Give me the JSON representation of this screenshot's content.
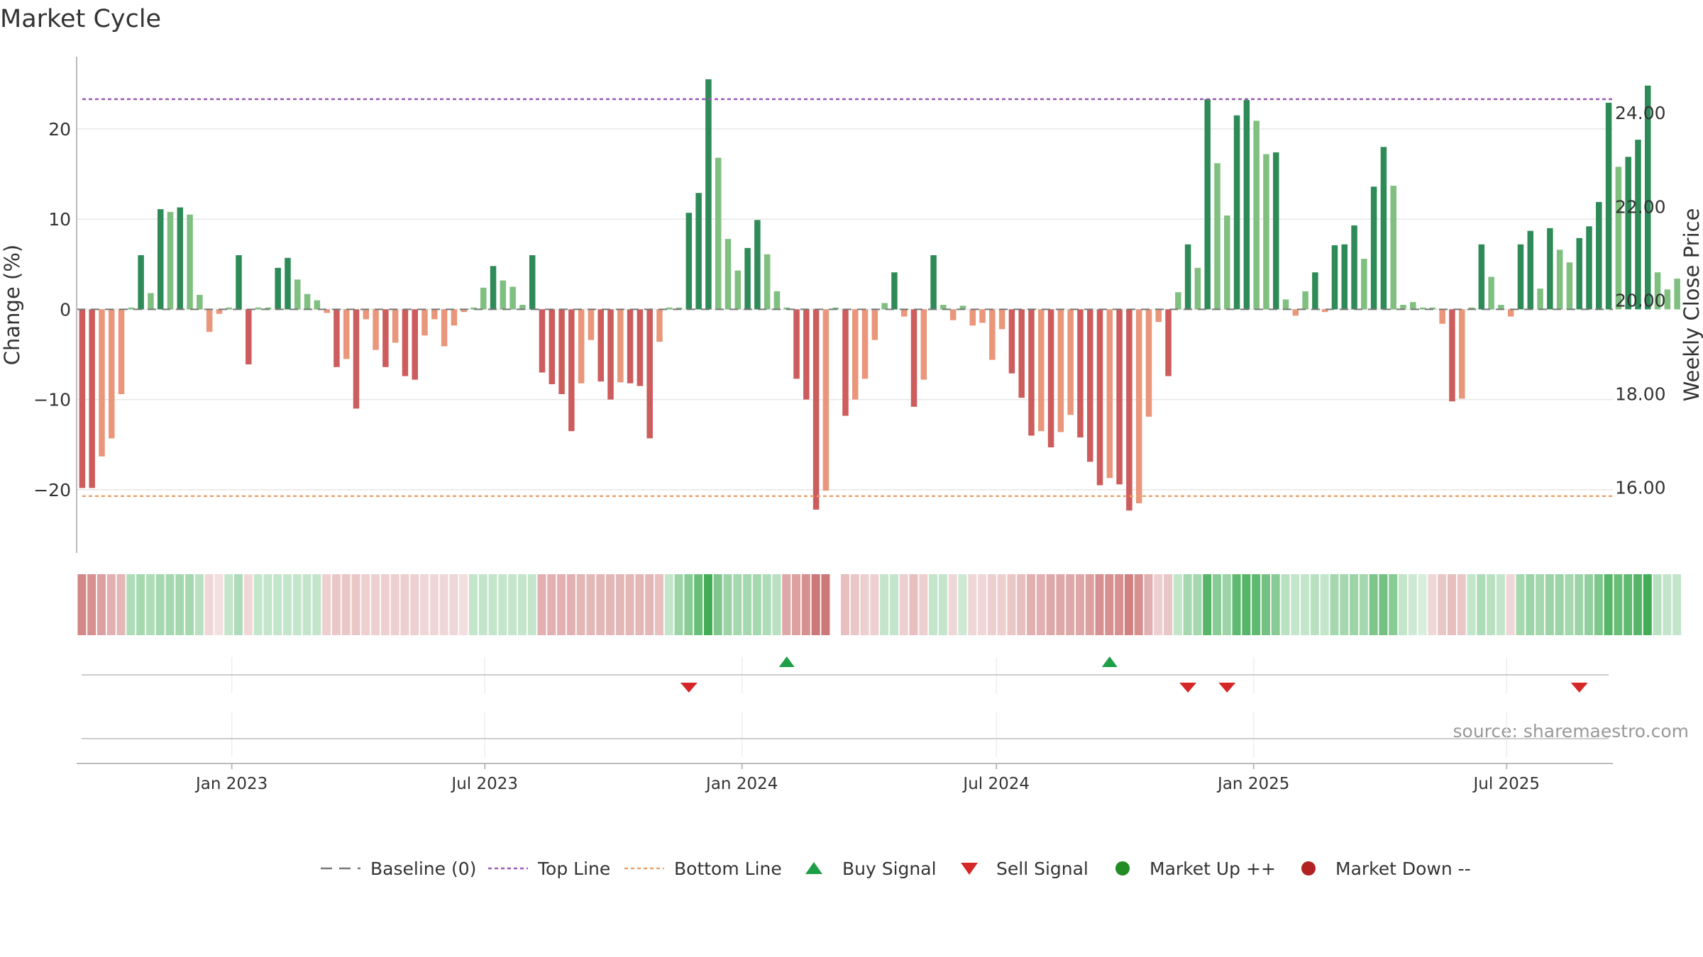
{
  "chart_data": {
    "type": "bar",
    "title": "Market Cycle",
    "source": "source: sharemaestro.com",
    "ylabel_left": "Change (%)",
    "ylabel_right": "Weekly Close Price",
    "ylim_left": [
      -27,
      28
    ],
    "left_ticks": [
      20,
      10,
      0,
      -10,
      -20
    ],
    "left_tick_labels": [
      "20",
      "10",
      "0",
      "−10",
      "−20"
    ],
    "right_ticks": [
      24,
      22,
      20,
      18,
      16
    ],
    "right_tick_labels": [
      "24.00",
      "22.00",
      "20.00",
      "18.00",
      "16.00"
    ],
    "top_line": 23.3,
    "bottom_line": -20.7,
    "x_start": "2022-09-12",
    "x_end": "2025-09-15",
    "x_ticks": [
      {
        "date": "2023-01-01",
        "label": "Jan 2023"
      },
      {
        "date": "2023-07-01",
        "label": "Jul 2023"
      },
      {
        "date": "2024-01-01",
        "label": "Jan 2024"
      },
      {
        "date": "2024-07-01",
        "label": "Jul 2024"
      },
      {
        "date": "2025-01-01",
        "label": "Jan 2025"
      },
      {
        "date": "2025-07-01",
        "label": "Jul 2025"
      }
    ],
    "week_start": "2022-09-16",
    "weekly_change": [
      -19.8,
      -19.8,
      -16.3,
      -14.3,
      -9.4,
      0.2,
      6.0,
      1.8,
      11.1,
      10.8,
      11.3,
      10.5,
      1.6,
      -2.5,
      -0.5,
      0.2,
      6.0,
      -6.1,
      0.2,
      0.2,
      4.6,
      5.7,
      3.3,
      1.7,
      1.0,
      -0.4,
      -6.4,
      -5.5,
      -11.0,
      -1.1,
      -4.5,
      -6.4,
      -3.7,
      -7.4,
      -7.8,
      -2.9,
      -1.1,
      -4.1,
      -1.8,
      -0.3,
      0.2,
      2.4,
      4.8,
      3.2,
      2.5,
      0.5,
      6.0,
      -7.0,
      -8.3,
      -9.4,
      -13.5,
      -8.2,
      -3.4,
      -8.0,
      -10.0,
      -8.1,
      -8.2,
      -8.5,
      -14.3,
      -3.6,
      0.2,
      0.2,
      10.7,
      12.9,
      25.5,
      16.8,
      7.8,
      4.3,
      6.8,
      9.9,
      6.1,
      2.0,
      0.2,
      -7.7,
      -10.0,
      -22.2,
      -20.1,
      0.2,
      -11.8,
      -10.0,
      -7.7,
      -3.4,
      0.7,
      4.1,
      -0.8,
      -10.8,
      -7.8,
      6.0,
      0.5,
      -1.2,
      0.4,
      -1.8,
      -1.5,
      -5.6,
      -2.2,
      -7.1,
      -9.8,
      -14.0,
      -13.5,
      -15.3,
      -13.6,
      -11.7,
      -14.2,
      -16.9,
      -19.5,
      -18.7,
      -19.4,
      -22.3,
      -21.5,
      -11.9,
      -1.4,
      -7.4,
      1.9,
      7.2,
      4.6,
      23.3,
      16.2,
      10.4,
      21.5,
      23.2,
      20.9,
      17.2,
      17.4,
      1.1,
      -0.7,
      2.0,
      4.1,
      -0.3,
      7.1,
      7.2,
      9.3,
      5.6,
      13.6,
      18.0,
      13.7,
      0.5,
      0.8,
      0.2,
      0.2,
      -1.6,
      -10.2,
      -9.9,
      0.2,
      7.2,
      3.6,
      0.5,
      -0.8,
      7.2,
      8.7,
      2.3,
      9.0,
      6.6,
      5.2,
      7.9,
      9.2,
      11.9,
      22.9,
      15.8,
      16.9,
      18.8,
      24.8,
      4.1,
      2.2,
      3.4
    ],
    "band_intensity": [
      -0.75,
      -0.7,
      -0.6,
      -0.5,
      -0.45,
      0.4,
      0.45,
      0.4,
      0.45,
      0.45,
      0.45,
      0.45,
      0.35,
      -0.25,
      -0.2,
      0.3,
      0.4,
      -0.25,
      0.3,
      0.3,
      0.3,
      0.3,
      0.3,
      0.3,
      0.3,
      -0.3,
      -0.35,
      -0.35,
      -0.35,
      -0.3,
      -0.3,
      -0.3,
      -0.3,
      -0.3,
      -0.3,
      -0.25,
      -0.25,
      -0.25,
      -0.25,
      -0.2,
      0.3,
      0.3,
      0.3,
      0.3,
      0.3,
      0.3,
      0.3,
      -0.5,
      -0.5,
      -0.5,
      -0.5,
      -0.45,
      -0.45,
      -0.45,
      -0.45,
      -0.45,
      -0.45,
      -0.45,
      -0.45,
      -0.4,
      0.3,
      0.5,
      0.6,
      0.75,
      0.95,
      0.65,
      0.5,
      0.45,
      0.45,
      0.45,
      0.4,
      0.35,
      -0.55,
      -0.6,
      -0.7,
      -0.85,
      -0.85,
      null,
      -0.4,
      -0.35,
      -0.3,
      -0.3,
      0.3,
      0.3,
      -0.3,
      -0.4,
      -0.3,
      0.3,
      0.3,
      -0.25,
      0.25,
      -0.25,
      -0.25,
      -0.3,
      -0.3,
      -0.35,
      -0.4,
      -0.5,
      -0.5,
      -0.55,
      -0.55,
      -0.55,
      -0.55,
      -0.6,
      -0.7,
      -0.7,
      -0.7,
      -0.8,
      -0.7,
      -0.5,
      -0.3,
      -0.35,
      0.3,
      0.45,
      0.45,
      0.85,
      0.6,
      0.5,
      0.8,
      0.85,
      0.8,
      0.7,
      0.6,
      0.35,
      0.3,
      0.3,
      0.35,
      0.3,
      0.45,
      0.45,
      0.5,
      0.45,
      0.65,
      0.7,
      0.6,
      0.3,
      0.25,
      0.2,
      -0.25,
      -0.35,
      -0.4,
      -0.35,
      0.3,
      0.4,
      0.35,
      0.3,
      -0.25,
      0.45,
      0.5,
      0.45,
      0.5,
      0.5,
      0.45,
      0.5,
      0.55,
      0.65,
      0.85,
      0.75,
      0.8,
      0.85,
      0.95,
      0.35,
      0.3,
      0.3
    ],
    "buy_signals": [
      "2024-02-02",
      "2024-09-20"
    ],
    "sell_signals": [
      "2023-11-24",
      "2024-11-15",
      "2024-12-13",
      "2025-08-22"
    ],
    "legend": [
      {
        "label": "Baseline (0)",
        "marker": "dashed",
        "color": "#777777"
      },
      {
        "label": "Top Line",
        "marker": "dotted",
        "color": "#9b59b6"
      },
      {
        "label": "Bottom Line",
        "marker": "dotted",
        "color": "#e8a36a"
      },
      {
        "label": "Buy Signal",
        "marker": "triangle-up",
        "color": "#1e9e46"
      },
      {
        "label": "Sell Signal",
        "marker": "triangle-down",
        "color": "#d62728"
      },
      {
        "label": "Market Up ++",
        "marker": "circle",
        "color": "#228b22"
      },
      {
        "label": "Market Down --",
        "marker": "circle",
        "color": "#b22222"
      }
    ],
    "legend_position": "bottom-center",
    "grid": true
  }
}
